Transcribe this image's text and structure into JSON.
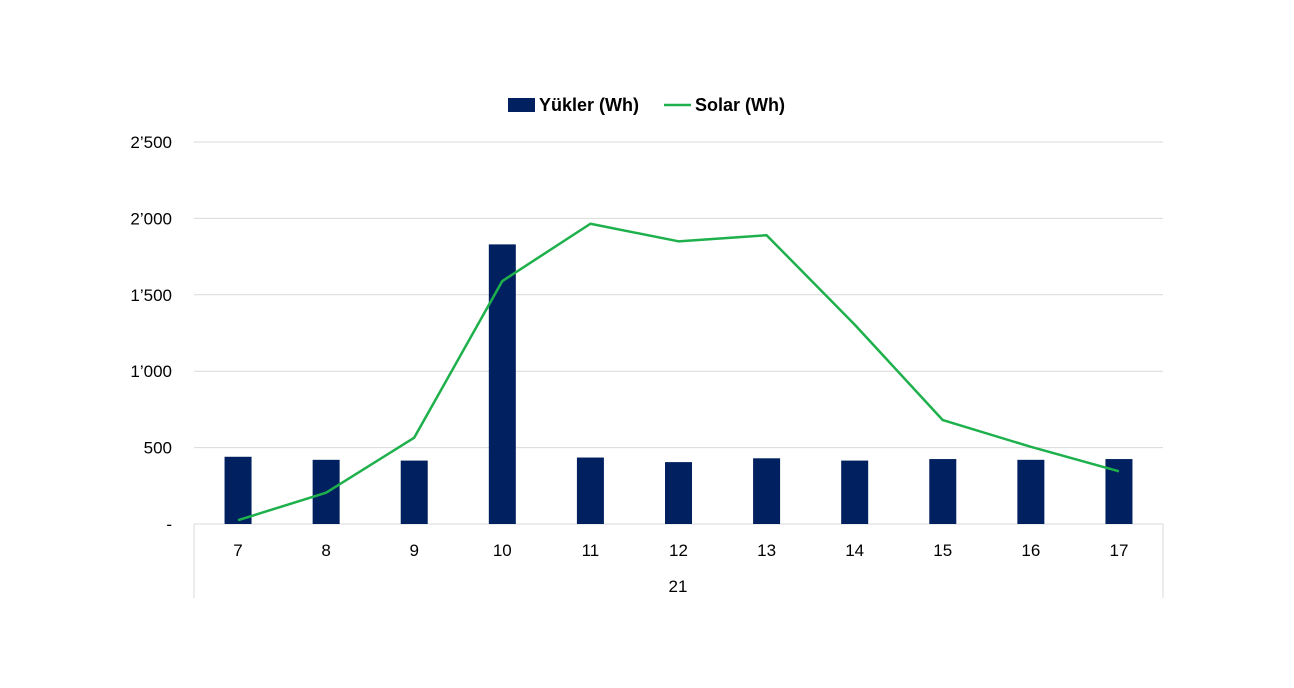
{
  "chart_data": {
    "type": "bar",
    "title": "",
    "xlabel": "",
    "ylabel": "",
    "group_label": "21",
    "categories": [
      "7",
      "8",
      "9",
      "10",
      "11",
      "12",
      "13",
      "14",
      "15",
      "16",
      "17"
    ],
    "ylim": [
      0,
      2500
    ],
    "yticks": [
      0,
      500,
      1000,
      1500,
      2000,
      2500
    ],
    "ytick_labels": [
      "-",
      "500",
      "1’000",
      "1’500",
      "2’000",
      "2’500"
    ],
    "grid": true,
    "legend_position": "top-center",
    "series": [
      {
        "name": "Yükler (Wh)",
        "type": "bar",
        "color": "#002060",
        "values": [
          440,
          420,
          415,
          1830,
          435,
          405,
          430,
          415,
          425,
          420,
          425
        ]
      },
      {
        "name": "Solar (Wh)",
        "type": "line",
        "color": "#1DB04B",
        "values": [
          25,
          205,
          565,
          1590,
          1965,
          1850,
          1890,
          1305,
          680,
          505,
          345
        ]
      }
    ]
  }
}
